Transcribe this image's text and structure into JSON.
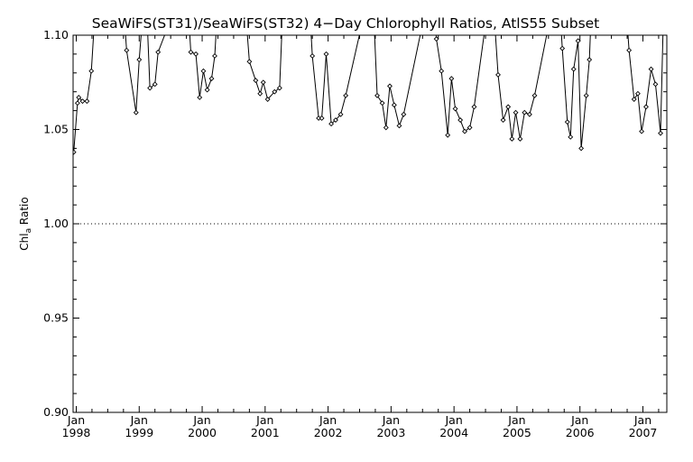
{
  "chart_data": {
    "type": "line",
    "title": "SeaWiFS(ST31)/SeaWiFS(ST32) 4−Day Chlorophyll Ratios, AtlS55 Subset",
    "ylabel": "Chla Ratio",
    "ylabel_main": "Chl",
    "ylabel_sub": "a",
    "ylabel_rest": " Ratio",
    "xlabel": "",
    "ylim": [
      0.9,
      1.1
    ],
    "xlim": [
      1997.95,
      2007.38
    ],
    "yticks": [
      0.9,
      0.95,
      1.0,
      1.05,
      1.1
    ],
    "ytick_labels": [
      "0.90",
      "0.95",
      "1.00",
      "1.05",
      "1.10"
    ],
    "xticks": [
      1998,
      1999,
      2000,
      2001,
      2002,
      2003,
      2004,
      2005,
      2006,
      2007
    ],
    "xtick_month_labels": [
      "Jan",
      "Jan",
      "Jan",
      "Jan",
      "Jan",
      "Jan",
      "Jan",
      "Jan",
      "Jan",
      "Jan"
    ],
    "xtick_year_labels": [
      "1998",
      "1999",
      "2000",
      "2001",
      "2002",
      "2003",
      "2004",
      "2005",
      "2006",
      "2007"
    ],
    "reference_line": 1.0,
    "grid": false,
    "series": [
      {
        "marker": "diamond",
        "x": [
          1997.96,
          1998.02,
          1998.04,
          1998.1,
          1998.17,
          1998.24,
          1998.33,
          1998.72,
          1998.8,
          1998.95,
          1999.0,
          1999.1,
          1999.17,
          1999.25,
          1999.3,
          1999.75,
          1999.82,
          1999.9,
          1999.96,
          2000.02,
          2000.08,
          2000.15,
          2000.2,
          2000.27,
          2000.65,
          2000.75,
          2000.85,
          2000.92,
          2000.97,
          2001.04,
          2001.15,
          2001.23,
          2001.3,
          2001.68,
          2001.75,
          2001.85,
          2001.9,
          2001.97,
          2002.05,
          2002.12,
          2002.2,
          2002.28,
          2002.7,
          2002.78,
          2002.86,
          2002.92,
          2002.98,
          2003.05,
          2003.13,
          2003.2,
          2003.65,
          2003.72,
          2003.8,
          2003.9,
          2003.96,
          2004.02,
          2004.1,
          2004.17,
          2004.25,
          2004.32,
          2004.6,
          2004.7,
          2004.78,
          2004.86,
          2004.92,
          2004.98,
          2005.05,
          2005.12,
          2005.2,
          2005.28,
          2005.65,
          2005.72,
          2005.8,
          2005.85,
          2005.9,
          2005.97,
          2006.02,
          2006.1,
          2006.15,
          2006.2,
          2006.7,
          2006.78,
          2006.86,
          2006.92,
          2006.98,
          2007.05,
          2007.13,
          2007.2,
          2007.28,
          2007.34
        ],
        "y": [
          1.038,
          1.064,
          1.067,
          1.065,
          1.065,
          1.081,
          1.13,
          1.13,
          1.092,
          1.059,
          1.087,
          1.13,
          1.072,
          1.074,
          1.091,
          1.13,
          1.091,
          1.09,
          1.067,
          1.081,
          1.071,
          1.077,
          1.089,
          1.13,
          1.13,
          1.086,
          1.076,
          1.069,
          1.075,
          1.066,
          1.07,
          1.072,
          1.13,
          1.13,
          1.089,
          1.056,
          1.056,
          1.09,
          1.053,
          1.055,
          1.058,
          1.068,
          1.13,
          1.068,
          1.064,
          1.051,
          1.073,
          1.063,
          1.052,
          1.058,
          1.13,
          1.098,
          1.081,
          1.047,
          1.077,
          1.061,
          1.055,
          1.049,
          1.051,
          1.062,
          1.13,
          1.079,
          1.055,
          1.062,
          1.045,
          1.059,
          1.045,
          1.059,
          1.058,
          1.068,
          1.13,
          1.093,
          1.054,
          1.046,
          1.082,
          1.097,
          1.04,
          1.068,
          1.087,
          1.13,
          1.13,
          1.092,
          1.066,
          1.069,
          1.049,
          1.062,
          1.082,
          1.074,
          1.048,
          1.13
        ]
      }
    ]
  }
}
